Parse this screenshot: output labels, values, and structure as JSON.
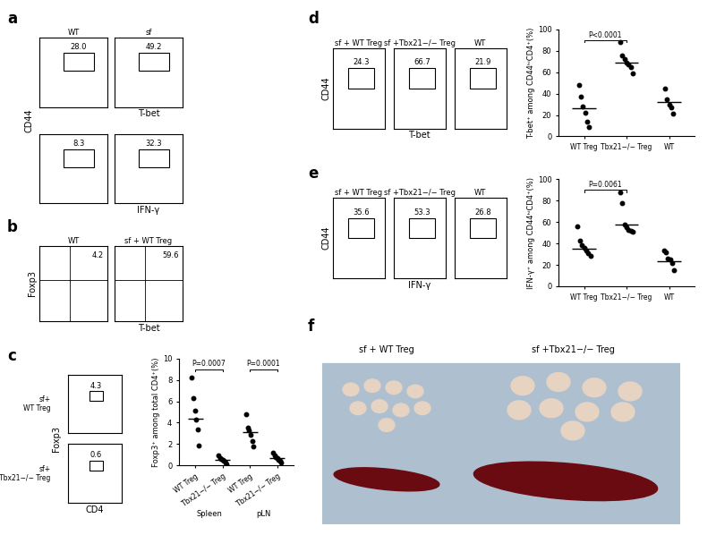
{
  "chart_data": [
    {
      "type": "flow",
      "panel": "a",
      "title": "WT",
      "y_label": "CD44",
      "gates": [
        28.0
      ],
      "tick_labels": false
    },
    {
      "type": "flow",
      "title": "sf",
      "x_label": "T-bet",
      "gates": [
        49.2
      ],
      "tick_labels": false
    },
    {
      "type": "flow",
      "gates": [
        8.3
      ],
      "tick_labels": false
    },
    {
      "type": "flow",
      "x_label": "IFN-γ",
      "gates": [
        32.3
      ],
      "tick_labels": false
    },
    {
      "type": "quadrant",
      "panel": "b",
      "title": "WT",
      "y_label": "Foxp3",
      "gates": [
        4.2
      ],
      "tick_labels": false
    },
    {
      "type": "quadrant",
      "title": "sf + WT Treg",
      "x_label": "T-bet",
      "gates": [
        59.6
      ],
      "tick_labels": false
    },
    {
      "type": "flow",
      "panel": "c",
      "row_label": "sf+\nWT Treg",
      "y_label": "Foxp3",
      "gates": [
        4.3
      ],
      "tick_labels": false
    },
    {
      "type": "flow",
      "row_label": "sf+\nTbx21−/− Treg",
      "x_label": "CD4",
      "gates": [
        0.6
      ],
      "tick_labels": false
    },
    {
      "type": "scatter",
      "categories": [
        "WT Treg",
        "Tbx21−/− Treg",
        "WT Treg",
        "Tbx21−/− Treg"
      ],
      "values": [
        [
          8.2,
          6.3,
          5.1,
          4.3,
          3.4,
          1.9
        ],
        [
          0.9,
          0.7,
          0.6,
          0.5,
          0.4,
          0.3,
          0.1
        ],
        [
          4.8,
          3.5,
          3.3,
          2.9,
          2.3,
          1.8
        ],
        [
          1.2,
          0.9,
          0.8,
          0.7,
          0.5,
          0.4,
          0.3
        ]
      ],
      "mean": [
        4.4,
        0.5,
        3.1,
        0.7
      ],
      "color": "#000000",
      "marker": "o",
      "y_label": "Foxp3⁺ among total CD4⁺(%)",
      "ylim": [
        0,
        10
      ],
      "yticks": [
        0,
        2,
        4,
        6,
        8,
        10
      ],
      "groups": [
        {
          "label": "Spleen",
          "categories": [
            0,
            1
          ]
        },
        {
          "label": "pLN",
          "categories": [
            2,
            3
          ]
        }
      ],
      "p_values": [
        {
          "label": "P=0.0007",
          "between": [
            0,
            1
          ]
        },
        {
          "label": "P=0.0001",
          "between": [
            2,
            3
          ]
        }
      ]
    },
    {
      "type": "flow",
      "panel": "d",
      "title": "sf + WT Treg",
      "y_label": "CD44",
      "gates": [
        24.3
      ],
      "tick_labels": false
    },
    {
      "type": "flow",
      "title": "sf +Tbx21−/− Treg",
      "x_label": "T-bet",
      "gates": [
        66.7
      ],
      "tick_labels": false
    },
    {
      "type": "flow",
      "title": "WT",
      "gates": [
        21.9
      ],
      "tick_labels": false
    },
    {
      "type": "scatter",
      "categories": [
        "WT Treg",
        "Tbx21−/− Treg",
        "WT"
      ],
      "values": [
        [
          48,
          37,
          28,
          22,
          14,
          9
        ],
        [
          88,
          76,
          72,
          69,
          67,
          65,
          59
        ],
        [
          45,
          35,
          30,
          27,
          21
        ]
      ],
      "mean": [
        26,
        69,
        32
      ],
      "color": "#000000",
      "marker": "o",
      "y_label": "T-bet⁺ among CD44ʰⁱCD4⁺(%)",
      "ylim": [
        0,
        100
      ],
      "yticks": [
        0,
        20,
        40,
        60,
        80,
        100
      ],
      "p_values": [
        {
          "label": "P<0.0001",
          "between": [
            0,
            1
          ]
        }
      ]
    },
    {
      "type": "flow",
      "panel": "e",
      "title": "sf + WT Treg",
      "y_label": "CD44",
      "gates": [
        35.6
      ],
      "tick_labels": false
    },
    {
      "type": "flow",
      "title": "sf +Tbx21−/− Treg",
      "x_label": "IFN-γ",
      "gates": [
        53.3
      ],
      "tick_labels": false
    },
    {
      "type": "flow",
      "title": "WT",
      "gates": [
        26.8
      ],
      "tick_labels": false
    },
    {
      "type": "scatter",
      "categories": [
        "WT Treg",
        "Tbx21−/− Treg",
        "WT"
      ],
      "values": [
        [
          56,
          43,
          38,
          36,
          33,
          31,
          28
        ],
        [
          88,
          78,
          58,
          55,
          53,
          52,
          51
        ],
        [
          33,
          32,
          26,
          25,
          22,
          15
        ]
      ],
      "mean": [
        35,
        58,
        23
      ],
      "color": "#000000",
      "marker": "o",
      "y_label": "IFN-γ⁺ among CD44ʰⁱCD4⁺(%)",
      "ylim": [
        0,
        100
      ],
      "yticks": [
        0,
        20,
        40,
        60,
        80,
        100
      ],
      "p_values": [
        {
          "label": "P=0.0061",
          "between": [
            0,
            1
          ]
        }
      ]
    },
    {
      "type": "photo",
      "panel": "f",
      "labels": [
        "sf + WT Treg",
        "sf +Tbx21−/− Treg"
      ]
    }
  ]
}
